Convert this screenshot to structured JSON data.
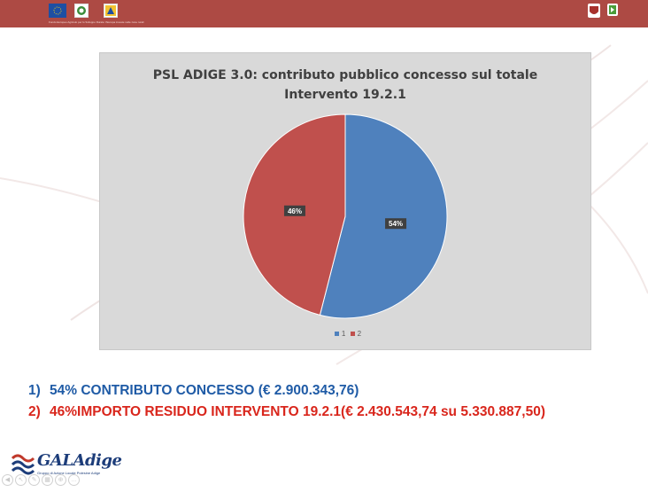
{
  "header": {
    "disclaimer": "Fondo Europeo Agricolo per lo Sviluppo Rurale: l'Europa investe nelle zone rurali"
  },
  "chart_data": {
    "type": "pie",
    "title": "PSL ADIGE 3.0: contributo pubblico concesso sul totale Intervento 19.2.1",
    "title_lines": [
      "PSL ADIGE 3.0: contributo pubblico concesso sul totale",
      "Intervento 19.2.1"
    ],
    "categories": [
      "1",
      "2"
    ],
    "values": [
      54,
      46
    ],
    "data_labels": [
      "54%",
      "46%"
    ],
    "colors": [
      "#4f81bd",
      "#c0504d"
    ],
    "legend": "bottom"
  },
  "captions": [
    {
      "number": "1)",
      "text": "54% CONTRIBUTO CONCESSO (€ 2.900.343,76)",
      "color": "#1f5ba6"
    },
    {
      "number": "2)",
      "text": "46%IMPORTO RESIDUO INTERVENTO 19.2.1(€ 2.430.543,74 su 5.330.887,50)",
      "color": "#d9261c"
    }
  ],
  "footer": {
    "logo_text": "GALAdige",
    "logo_subtitle": "Gruppo di Azione Locale Polesine Adige"
  }
}
